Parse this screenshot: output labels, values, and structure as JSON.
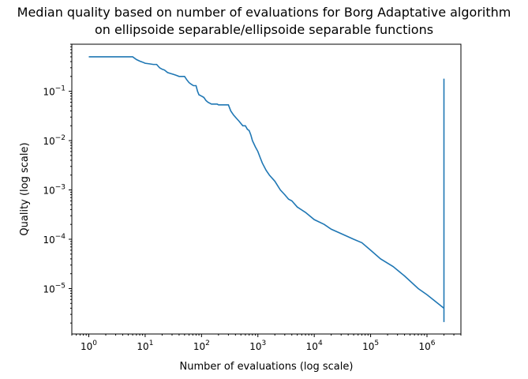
{
  "chart_data": {
    "type": "line",
    "title": "Median quality based on number of evaluations for Borg Adaptative algorithm",
    "subtitle": "on ellipsoide separable/ellipsoide separable functions",
    "xlabel": "Number of evaluations (log scale)",
    "ylabel": "Quality (log scale)",
    "xscale": "log",
    "yscale": "log",
    "xlim": [
      0.5,
      4000000
    ],
    "ylim": [
      1.2e-06,
      0.9
    ],
    "grid": false,
    "x_ticks": [
      {
        "value": 1,
        "base": "10",
        "exp": "0"
      },
      {
        "value": 10,
        "base": "10",
        "exp": "1"
      },
      {
        "value": 100,
        "base": "10",
        "exp": "2"
      },
      {
        "value": 1000,
        "base": "10",
        "exp": "3"
      },
      {
        "value": 10000,
        "base": "10",
        "exp": "4"
      },
      {
        "value": 100000,
        "base": "10",
        "exp": "5"
      },
      {
        "value": 1000000,
        "base": "10",
        "exp": "6"
      }
    ],
    "y_ticks": [
      {
        "value": 0.1,
        "base": "10",
        "exp": "−1"
      },
      {
        "value": 0.01,
        "base": "10",
        "exp": "−2"
      },
      {
        "value": 0.001,
        "base": "10",
        "exp": "−3"
      },
      {
        "value": 0.0001,
        "base": "10",
        "exp": "−4"
      },
      {
        "value": 1e-05,
        "base": "10",
        "exp": "−5"
      }
    ],
    "series": [
      {
        "color": "#1f77b4",
        "points": [
          [
            1,
            0.5
          ],
          [
            2,
            0.5
          ],
          [
            3,
            0.5
          ],
          [
            4,
            0.5
          ],
          [
            5,
            0.5
          ],
          [
            6,
            0.5
          ],
          [
            7,
            0.44
          ],
          [
            8,
            0.41
          ],
          [
            9,
            0.39
          ],
          [
            10,
            0.37
          ],
          [
            12,
            0.36
          ],
          [
            14,
            0.35
          ],
          [
            16,
            0.35
          ],
          [
            18,
            0.3
          ],
          [
            20,
            0.28
          ],
          [
            22,
            0.27
          ],
          [
            25,
            0.24
          ],
          [
            28,
            0.23
          ],
          [
            32,
            0.22
          ],
          [
            36,
            0.21
          ],
          [
            40,
            0.2
          ],
          [
            50,
            0.2
          ],
          [
            55,
            0.17
          ],
          [
            60,
            0.15
          ],
          [
            65,
            0.14
          ],
          [
            72,
            0.13
          ],
          [
            80,
            0.13
          ],
          [
            85,
            0.1
          ],
          [
            90,
            0.085
          ],
          [
            100,
            0.08
          ],
          [
            110,
            0.075
          ],
          [
            120,
            0.065
          ],
          [
            130,
            0.06
          ],
          [
            150,
            0.055
          ],
          [
            160,
            0.055
          ],
          [
            190,
            0.055
          ],
          [
            200,
            0.053
          ],
          [
            300,
            0.053
          ],
          [
            330,
            0.04
          ],
          [
            370,
            0.033
          ],
          [
            420,
            0.028
          ],
          [
            460,
            0.025
          ],
          [
            540,
            0.02
          ],
          [
            600,
            0.02
          ],
          [
            650,
            0.017
          ],
          [
            700,
            0.016
          ],
          [
            750,
            0.013
          ],
          [
            800,
            0.01
          ],
          [
            900,
            0.0075
          ],
          [
            1000,
            0.006
          ],
          [
            1100,
            0.0045
          ],
          [
            1200,
            0.0035
          ],
          [
            1400,
            0.0025
          ],
          [
            1600,
            0.002
          ],
          [
            2000,
            0.0015
          ],
          [
            2500,
            0.001
          ],
          [
            3000,
            0.0008
          ],
          [
            3500,
            0.00065
          ],
          [
            4000,
            0.0006
          ],
          [
            5000,
            0.00045
          ],
          [
            7000,
            0.00035
          ],
          [
            10000,
            0.00025
          ],
          [
            15000,
            0.0002
          ],
          [
            20000,
            0.00016
          ],
          [
            30000,
            0.00013
          ],
          [
            50000,
            0.0001
          ],
          [
            70000,
            8.5e-05
          ],
          [
            100000,
            6e-05
          ],
          [
            150000,
            4e-05
          ],
          [
            250000,
            2.8e-05
          ],
          [
            400000,
            1.8e-05
          ],
          [
            700000,
            1e-05
          ],
          [
            1000000,
            7.5e-06
          ],
          [
            2000000,
            4e-06
          ]
        ]
      },
      {
        "color": "#1f77b4",
        "points": [
          [
            2000000,
            2.1e-06
          ],
          [
            2000000,
            0.18
          ]
        ]
      }
    ]
  }
}
